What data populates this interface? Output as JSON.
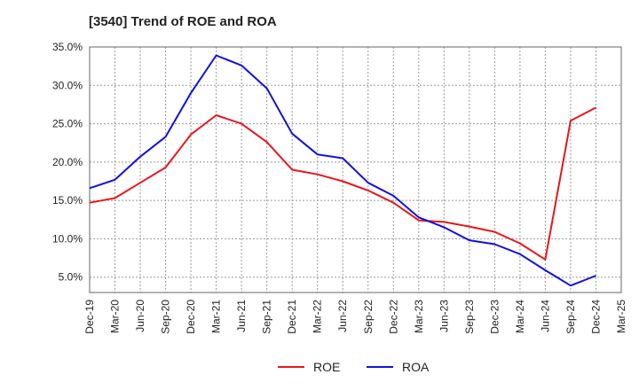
{
  "chart_data": {
    "type": "line",
    "title": "[3540]  Trend of ROE and ROA",
    "xlabel": "",
    "ylabel": "",
    "categories": [
      "Dec-19",
      "Mar-20",
      "Jun-20",
      "Sep-20",
      "Dec-20",
      "Mar-21",
      "Jun-21",
      "Sep-21",
      "Dec-21",
      "Mar-22",
      "Jun-22",
      "Sep-22",
      "Dec-22",
      "Mar-23",
      "Jun-23",
      "Sep-23",
      "Dec-23",
      "Mar-24",
      "Jun-24",
      "Sep-24",
      "Dec-24",
      "Mar-25"
    ],
    "ylim": [
      3.0,
      35.0
    ],
    "yticks": [
      5.0,
      10.0,
      15.0,
      20.0,
      25.0,
      30.0,
      35.0
    ],
    "ytick_labels": [
      "5.0%",
      "10.0%",
      "15.0%",
      "20.0%",
      "25.0%",
      "30.0%",
      "35.0%"
    ],
    "grid": true,
    "legend_position": "bottom-center",
    "series": [
      {
        "name": "ROE",
        "color": "#e8161a",
        "values": [
          14.7,
          15.3,
          17.3,
          19.3,
          23.6,
          26.1,
          25.0,
          22.6,
          19.0,
          18.4,
          17.5,
          16.3,
          14.7,
          12.4,
          12.2,
          11.6,
          10.9,
          9.4,
          7.3,
          25.4,
          27.1,
          null
        ]
      },
      {
        "name": "ROA",
        "color": "#1111dd",
        "values": [
          16.6,
          17.7,
          20.7,
          23.3,
          29.0,
          33.9,
          32.6,
          29.6,
          23.7,
          21.0,
          20.5,
          17.3,
          15.6,
          12.8,
          11.5,
          9.8,
          9.3,
          8.0,
          5.9,
          3.9,
          5.2,
          null
        ]
      }
    ]
  }
}
